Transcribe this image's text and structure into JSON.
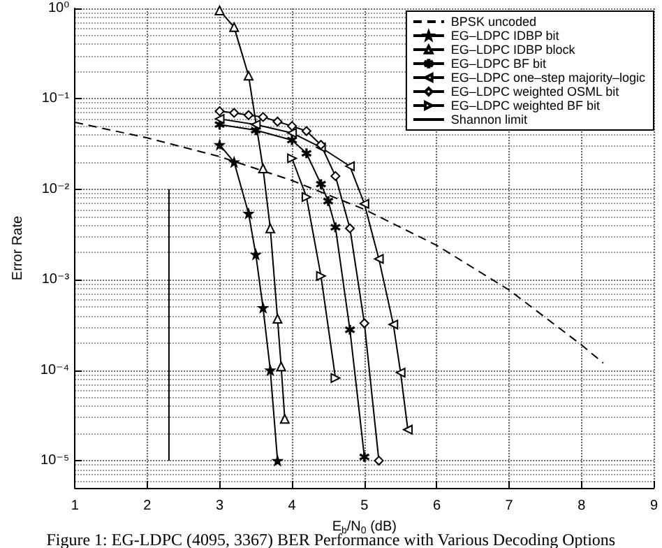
{
  "chart_data": {
    "type": "line",
    "xlabel": "E$_{b}$/N$_{0}$ (dB)",
    "ylabel": "Error Rate",
    "annotations": [
      "Figure 1: EG-LDPC (4095, 3367) BER Performance with Various Decoding Options"
    ],
    "log": "y",
    "grid": true,
    "legend": "top right",
    "xlim": [
      1,
      9
    ],
    "xticks": [
      1,
      2,
      3,
      4,
      5,
      6,
      7,
      8,
      9
    ],
    "ylim": [
      5e-06,
      1
    ],
    "yticks": [
      {
        "value": 1e-05,
        "label": "10⁻⁵"
      },
      {
        "value": 0.0001,
        "label": "10⁻⁴"
      },
      {
        "value": 0.001,
        "label": "10⁻³"
      },
      {
        "value": 0.01,
        "label": "10⁻²"
      },
      {
        "value": 0.1,
        "label": "10⁻¹"
      },
      {
        "value": 1,
        "label": "10⁰"
      }
    ],
    "series": [
      {
        "name": "BPSK uncoded",
        "color": "#000000",
        "marker": "none",
        "line_style": "dashed",
        "x": [
          1,
          2,
          3,
          4,
          5,
          6,
          7,
          8,
          8.3
        ],
        "values": [
          0.055,
          0.037,
          0.023,
          0.0125,
          0.006,
          0.0024,
          0.00077,
          0.00019,
          0.00012
        ]
      },
      {
        "name": "EG–LDPC IDBP bit",
        "color": "#000000",
        "marker": "star",
        "line_style": "solid",
        "x": [
          3.0,
          3.2,
          3.4,
          3.5,
          3.6,
          3.7,
          3.8
        ],
        "values": [
          0.031,
          0.02,
          0.0054,
          0.0019,
          0.00049,
          0.0001,
          1e-05
        ]
      },
      {
        "name": "EG–LDPC IDBP block",
        "color": "#000000",
        "marker": "triangle",
        "line_style": "solid",
        "x": [
          3.0,
          3.2,
          3.4,
          3.6,
          3.7,
          3.8,
          3.85,
          3.9
        ],
        "values": [
          0.95,
          0.62,
          0.18,
          0.017,
          0.0037,
          0.00037,
          0.00011,
          2.9e-05
        ]
      },
      {
        "name": "EG–LDPC BF bit",
        "color": "#000000",
        "marker": "cross",
        "line_style": "solid",
        "x": [
          3.0,
          3.5,
          4.0,
          4.2,
          4.4,
          4.5,
          4.6,
          4.8,
          5.0
        ],
        "values": [
          0.052,
          0.045,
          0.035,
          0.025,
          0.0114,
          0.0074,
          0.0038,
          0.00028,
          1.1e-05
        ]
      },
      {
        "name": "EG–LDPC one–step majority–logic",
        "color": "#000000",
        "marker": "triangle-left",
        "line_style": "solid",
        "x": [
          3.0,
          3.5,
          4.0,
          4.4,
          4.8,
          5.0,
          5.2,
          5.4,
          5.5,
          5.6
        ],
        "values": [
          0.06,
          0.052,
          0.042,
          0.029,
          0.018,
          0.0069,
          0.0017,
          0.00032,
          9.4e-05,
          2.2e-05
        ]
      },
      {
        "name": "EG–LDPC weighted OSML bit",
        "color": "#000000",
        "marker": "diamond",
        "line_style": "solid",
        "x": [
          3.0,
          3.2,
          3.4,
          3.6,
          3.8,
          4.0,
          4.2,
          4.4,
          4.6,
          4.8,
          5.0,
          5.2
        ],
        "values": [
          0.073,
          0.07,
          0.066,
          0.063,
          0.056,
          0.05,
          0.044,
          0.031,
          0.014,
          0.0037,
          0.00033,
          1e-05
        ]
      },
      {
        "name": "EG–LDPC weighted BF bit",
        "color": "#000000",
        "marker": "triangle-right",
        "line_style": "solid",
        "x": [
          4.0,
          4.2,
          4.4,
          4.6
        ],
        "values": [
          0.022,
          0.0082,
          0.0011,
          8.2e-05
        ]
      },
      {
        "name": "Shannon limit",
        "color": "#000000",
        "marker": "none",
        "line_style": "solid",
        "x": [
          2.3,
          2.3
        ],
        "values": [
          0.01,
          1e-05
        ]
      }
    ]
  }
}
